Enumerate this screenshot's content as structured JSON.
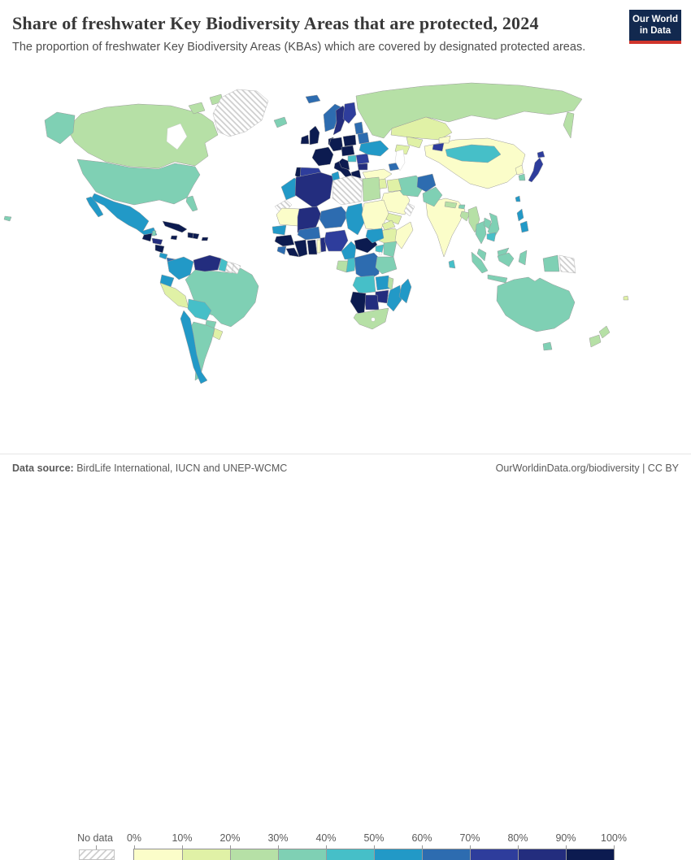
{
  "header": {
    "title": "Share of freshwater Key Biodiversity Areas that are protected, 2024",
    "subtitle": "The proportion of freshwater Key Biodiversity Areas (KBAs) which are covered by designated protected areas.",
    "logo_line1": "Our World",
    "logo_line2": "in Data",
    "logo_bg": "#12294f",
    "logo_accent": "#d0352c"
  },
  "legend": {
    "no_data_label": "No data",
    "tick_labels": [
      "0%",
      "10%",
      "20%",
      "30%",
      "40%",
      "50%",
      "60%",
      "70%",
      "80%",
      "90%",
      "100%"
    ]
  },
  "footer": {
    "source_label": "Data source:",
    "source_text": " BirdLife International, IUCN and UNEP-WCMC",
    "right_text": "OurWorldinData.org/biodiversity | CC BY"
  },
  "chart_data": {
    "type": "choropleth",
    "title": "Share of freshwater Key Biodiversity Areas that are protected",
    "year": 2024,
    "unit": "% of freshwater KBAs covered by designated protected areas",
    "legend_position": "bottom",
    "color_scale": {
      "bucket_labels": [
        "0-10%",
        "10-20%",
        "20-30%",
        "30-40%",
        "40-50%",
        "50-60%",
        "60-70%",
        "70-80%",
        "80-90%",
        "90-100%"
      ],
      "colors": [
        "#fbfdc9",
        "#e0f1a6",
        "#b6e0a6",
        "#7fd0b4",
        "#46bfc8",
        "#2299c7",
        "#2d6cb0",
        "#2e3d9c",
        "#232d7e",
        "#0c1b50"
      ],
      "no_data": "hatched"
    },
    "regions": [
      {
        "name": "Russia",
        "value": "20-30%"
      },
      {
        "name": "Canada",
        "value": "20-30%"
      },
      {
        "name": "Greenland",
        "value": "No data"
      },
      {
        "name": "United States",
        "value": "30-40%"
      },
      {
        "name": "China",
        "value": "0-10%"
      },
      {
        "name": "Brazil",
        "value": "30-40%"
      },
      {
        "name": "Australia",
        "value": "30-40%"
      },
      {
        "name": "Kazakhstan",
        "value": "10-20%"
      },
      {
        "name": "India",
        "value": "0-10%"
      },
      {
        "name": "Saudi Arabia",
        "value": "0-10%"
      },
      {
        "name": "Iran",
        "value": "30-40%"
      },
      {
        "name": "Mexico",
        "value": "50-60%"
      },
      {
        "name": "Guatemala",
        "value": "90-100%"
      },
      {
        "name": "Belize",
        "value": "30-40%"
      },
      {
        "name": "Honduras",
        "value": "80-90%"
      },
      {
        "name": "Nicaragua",
        "value": "90-100%"
      },
      {
        "name": "Costa Rica",
        "value": "50-60%"
      },
      {
        "name": "Panama",
        "value": "60-70%"
      },
      {
        "name": "Cuba",
        "value": "90-100%"
      },
      {
        "name": "Jamaica",
        "value": "90-100%"
      },
      {
        "name": "Haiti",
        "value": "90-100%"
      },
      {
        "name": "Dominican Republic",
        "value": "90-100%"
      },
      {
        "name": "Puerto Rico",
        "value": "90-100%"
      },
      {
        "name": "Colombia",
        "value": "50-60%"
      },
      {
        "name": "Venezuela",
        "value": "80-90%"
      },
      {
        "name": "Guyana",
        "value": "40-50%"
      },
      {
        "name": "Suriname",
        "value": "No data"
      },
      {
        "name": "French Guiana",
        "value": "No data"
      },
      {
        "name": "Ecuador",
        "value": "50-60%"
      },
      {
        "name": "Peru",
        "value": "10-20%"
      },
      {
        "name": "Bolivia",
        "value": "40-50%"
      },
      {
        "name": "Paraguay",
        "value": "30-40%"
      },
      {
        "name": "Argentina",
        "value": "30-40%"
      },
      {
        "name": "Chile",
        "value": "50-60%"
      },
      {
        "name": "Uruguay",
        "value": "10-20%"
      },
      {
        "name": "Iceland",
        "value": "30-40%"
      },
      {
        "name": "Norway",
        "value": "60-70%"
      },
      {
        "name": "Sweden",
        "value": "80-90%"
      },
      {
        "name": "Finland",
        "value": "70-80%"
      },
      {
        "name": "Denmark",
        "value": "90-100%"
      },
      {
        "name": "United Kingdom",
        "value": "90-100%"
      },
      {
        "name": "Ireland",
        "value": "90-100%"
      },
      {
        "name": "France",
        "value": "90-100%"
      },
      {
        "name": "Spain",
        "value": "70-80%"
      },
      {
        "name": "Portugal",
        "value": "90-100%"
      },
      {
        "name": "Germany",
        "value": "90-100%"
      },
      {
        "name": "Italy",
        "value": "90-100%"
      },
      {
        "name": "Poland",
        "value": "90-100%"
      },
      {
        "name": "Czechia",
        "value": "90-100%"
      },
      {
        "name": "Hungary",
        "value": "40-50%"
      },
      {
        "name": "Serbia",
        "value": "90-100%"
      },
      {
        "name": "Greece",
        "value": "90-100%"
      },
      {
        "name": "Romania",
        "value": "70-80%"
      },
      {
        "name": "Bulgaria",
        "value": "80-90%"
      },
      {
        "name": "Baltic states",
        "value": "60-70%"
      },
      {
        "name": "Belarus",
        "value": "60-70%"
      },
      {
        "name": "Ukraine",
        "value": "50-60%"
      },
      {
        "name": "Turkey",
        "value": "0-10%"
      },
      {
        "name": "Azerbaijan",
        "value": "60-70%"
      },
      {
        "name": "Uzbekistan",
        "value": "10-20%"
      },
      {
        "name": "Turkmenistan",
        "value": "10-20%"
      },
      {
        "name": "Kyrgyzstan",
        "value": "0-10%"
      },
      {
        "name": "Tajikistan",
        "value": "70-80%"
      },
      {
        "name": "Syria",
        "value": "10-20%"
      },
      {
        "name": "Iraq",
        "value": "10-20%"
      },
      {
        "name": "Yemen",
        "value": "10-20%"
      },
      {
        "name": "Oman",
        "value": "No data"
      },
      {
        "name": "Afghanistan",
        "value": "60-70%"
      },
      {
        "name": "Pakistan",
        "value": "30-40%"
      },
      {
        "name": "Nepal",
        "value": "20-30%"
      },
      {
        "name": "Bhutan",
        "value": "30-40%"
      },
      {
        "name": "Bangladesh",
        "value": "20-30%"
      },
      {
        "name": "Sri Lanka",
        "value": "40-50%"
      },
      {
        "name": "Myanmar",
        "value": "20-30%"
      },
      {
        "name": "Mongolia",
        "value": "40-50%"
      },
      {
        "name": "North Korea",
        "value": "0-10%"
      },
      {
        "name": "South Korea",
        "value": "30-40%"
      },
      {
        "name": "Japan",
        "value": "70-80%"
      },
      {
        "name": "Taiwan",
        "value": "50-60%"
      },
      {
        "name": "Thailand",
        "value": "30-40%"
      },
      {
        "name": "Laos",
        "value": "30-40%"
      },
      {
        "name": "Vietnam",
        "value": "30-40%"
      },
      {
        "name": "Cambodia",
        "value": "40-50%"
      },
      {
        "name": "Malaysia",
        "value": "30-40%"
      },
      {
        "name": "Indonesia",
        "value": "30-40%"
      },
      {
        "name": "Philippines",
        "value": "50-60%"
      },
      {
        "name": "Papua New Guinea",
        "value": "No data"
      },
      {
        "name": "New Zealand",
        "value": "20-30%"
      },
      {
        "name": "Fiji",
        "value": "10-20%"
      },
      {
        "name": "Morocco",
        "value": "50-60%"
      },
      {
        "name": "Western Sahara",
        "value": "No data"
      },
      {
        "name": "Algeria",
        "value": "80-90%"
      },
      {
        "name": "Tunisia",
        "value": "50-60%"
      },
      {
        "name": "Libya",
        "value": "No data"
      },
      {
        "name": "Egypt",
        "value": "20-30%"
      },
      {
        "name": "Mauritania",
        "value": "0-10%"
      },
      {
        "name": "Mali",
        "value": "80-90%"
      },
      {
        "name": "Niger",
        "value": "60-70%"
      },
      {
        "name": "Chad",
        "value": "50-60%"
      },
      {
        "name": "Sudan",
        "value": "0-10%"
      },
      {
        "name": "Eritrea",
        "value": "10-20%"
      },
      {
        "name": "Ethiopia",
        "value": "10-20%"
      },
      {
        "name": "Somalia",
        "value": "0-10%"
      },
      {
        "name": "Senegal",
        "value": "50-60%"
      },
      {
        "name": "Guinea",
        "value": "90-100%"
      },
      {
        "name": "Sierra Leone",
        "value": "60-70%"
      },
      {
        "name": "Liberia",
        "value": "90-100%"
      },
      {
        "name": "Côte d'Ivoire",
        "value": "90-100%"
      },
      {
        "name": "Ghana",
        "value": "90-100%"
      },
      {
        "name": "Togo",
        "value": "0-10%"
      },
      {
        "name": "Benin",
        "value": "80-90%"
      },
      {
        "name": "Burkina Faso",
        "value": "60-70%"
      },
      {
        "name": "Nigeria",
        "value": "70-80%"
      },
      {
        "name": "Cameroon",
        "value": "50-60%"
      },
      {
        "name": "Central African Republic",
        "value": "90-100%"
      },
      {
        "name": "South Sudan",
        "value": "50-60%"
      },
      {
        "name": "Gabon",
        "value": "20-30%"
      },
      {
        "name": "Congo",
        "value": "40-50%"
      },
      {
        "name": "Democratic Republic of Congo",
        "value": "60-70%"
      },
      {
        "name": "Uganda",
        "value": "40-50%"
      },
      {
        "name": "Kenya",
        "value": "30-40%"
      },
      {
        "name": "Tanzania",
        "value": "30-40%"
      },
      {
        "name": "Angola",
        "value": "40-50%"
      },
      {
        "name": "Zambia",
        "value": "50-60%"
      },
      {
        "name": "Malawi",
        "value": "20-30%"
      },
      {
        "name": "Mozambique",
        "value": "50-60%"
      },
      {
        "name": "Zimbabwe",
        "value": "80-90%"
      },
      {
        "name": "Botswana",
        "value": "80-90%"
      },
      {
        "name": "Namibia",
        "value": "90-100%"
      },
      {
        "name": "South Africa",
        "value": "20-30%"
      },
      {
        "name": "Madagascar",
        "value": "50-60%"
      }
    ]
  }
}
